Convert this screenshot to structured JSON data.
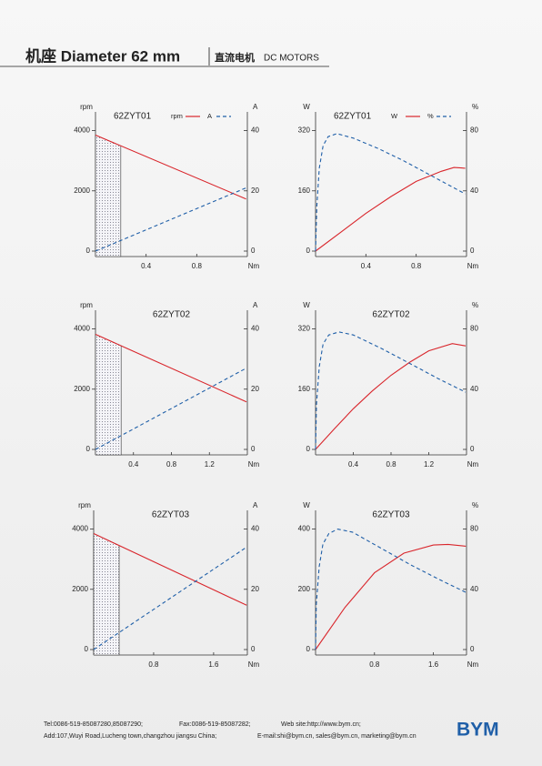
{
  "header": {
    "title": "机座 Diameter 62 mm",
    "subtitle_cn": "直流电机",
    "subtitle": "DC MOTORS"
  },
  "chart_data": [
    {
      "type": "line",
      "title": "62ZYT01",
      "y_label": "rpm",
      "y2_label": "A",
      "x_label": "Nm",
      "legend": true,
      "xlim": [
        0,
        1.2
      ],
      "xticks": [
        0.4,
        0.8
      ],
      "ylim": [
        0,
        4500
      ],
      "yticks": [
        0,
        2000,
        4000
      ],
      "y2lim": [
        0,
        45
      ],
      "y2ticks": [
        0,
        20,
        40
      ],
      "shaded_range": [
        0,
        0.2
      ],
      "series": [
        {
          "name": "rpm",
          "color": "#d9262c",
          "style": "solid",
          "x": [
            0,
            1.19
          ],
          "values": [
            3850,
            1730
          ]
        },
        {
          "name": "A",
          "color": "#1f5fa8",
          "style": "dashed",
          "axis": "y2",
          "x": [
            0,
            1.19
          ],
          "values": [
            0,
            21
          ]
        }
      ]
    },
    {
      "type": "line",
      "title": "62ZYT01",
      "y_label": "W",
      "y2_label": "%",
      "x_label": "Nm",
      "legend": true,
      "xlim": [
        0,
        1.2
      ],
      "xticks": [
        0.4,
        0.8
      ],
      "ylim": [
        0,
        360
      ],
      "yticks": [
        0,
        160,
        320
      ],
      "y2lim": [
        0,
        90
      ],
      "y2ticks": [
        0,
        40,
        80
      ],
      "series": [
        {
          "name": "W",
          "color": "#d9262c",
          "style": "solid",
          "x": [
            0,
            0.2,
            0.4,
            0.6,
            0.8,
            1.0,
            1.1,
            1.19
          ],
          "values": [
            0,
            50,
            100,
            145,
            185,
            212,
            222,
            220
          ]
        },
        {
          "name": "%",
          "color": "#1f5fa8",
          "style": "dashed",
          "axis": "y2",
          "x": [
            0,
            0.01,
            0.03,
            0.06,
            0.1,
            0.17,
            0.3,
            0.5,
            0.7,
            0.9,
            1.1,
            1.19
          ],
          "values": [
            0,
            30,
            55,
            70,
            76,
            78,
            75,
            68,
            60,
            51,
            42,
            38
          ]
        }
      ]
    },
    {
      "type": "line",
      "title": "62ZYT02",
      "y_label": "rpm",
      "y2_label": "A",
      "x_label": "Nm",
      "legend": false,
      "xlim": [
        0,
        1.6
      ],
      "xticks": [
        0.4,
        0.8,
        1.2
      ],
      "ylim": [
        0,
        4500
      ],
      "yticks": [
        0,
        2000,
        4000
      ],
      "y2lim": [
        0,
        45
      ],
      "y2ticks": [
        0,
        20,
        40
      ],
      "shaded_range": [
        0,
        0.27
      ],
      "series": [
        {
          "color": "#d9262c",
          "style": "solid",
          "x": [
            0,
            1.59
          ],
          "values": [
            3820,
            1580
          ]
        },
        {
          "color": "#1f5fa8",
          "style": "dashed",
          "axis": "y2",
          "x": [
            0,
            1.59
          ],
          "values": [
            0,
            27
          ]
        }
      ]
    },
    {
      "type": "line",
      "title": "62ZYT02",
      "y_label": "W",
      "y2_label": "%",
      "x_label": "Nm",
      "legend": false,
      "xlim": [
        0,
        1.6
      ],
      "xticks": [
        0.4,
        0.8,
        1.2
      ],
      "ylim": [
        0,
        360
      ],
      "yticks": [
        0,
        160,
        320
      ],
      "y2lim": [
        0,
        90
      ],
      "y2ticks": [
        0,
        40,
        80
      ],
      "series": [
        {
          "color": "#d9262c",
          "style": "solid",
          "x": [
            0,
            0.2,
            0.4,
            0.6,
            0.8,
            1.0,
            1.2,
            1.45,
            1.59
          ],
          "values": [
            0,
            55,
            108,
            155,
            197,
            232,
            262,
            281,
            275
          ]
        },
        {
          "color": "#1f5fa8",
          "style": "dashed",
          "axis": "y2",
          "x": [
            0,
            0.01,
            0.04,
            0.08,
            0.14,
            0.25,
            0.4,
            0.7,
            1.0,
            1.3,
            1.59
          ],
          "values": [
            0,
            30,
            55,
            70,
            76,
            78,
            76,
            67,
            57,
            47,
            38
          ]
        }
      ]
    },
    {
      "type": "line",
      "title": "62ZYT03",
      "y_label": "rpm",
      "y2_label": "A",
      "x_label": "Nm",
      "legend": false,
      "xlim": [
        0,
        2.05
      ],
      "xticks": [
        0.8,
        1.6
      ],
      "ylim": [
        0,
        4500
      ],
      "yticks": [
        0,
        2000,
        4000
      ],
      "y2lim": [
        0,
        45
      ],
      "y2ticks": [
        0,
        20,
        40
      ],
      "shaded_range": [
        0,
        0.34
      ],
      "series": [
        {
          "color": "#d9262c",
          "style": "solid",
          "x": [
            0,
            2.04
          ],
          "values": [
            3850,
            1470
          ]
        },
        {
          "color": "#1f5fa8",
          "style": "dashed",
          "axis": "y2",
          "x": [
            0,
            2.04
          ],
          "values": [
            0,
            34
          ]
        }
      ]
    },
    {
      "type": "line",
      "title": "62ZYT03",
      "y_label": "W",
      "y2_label": "%",
      "x_label": "Nm",
      "legend": false,
      "xlim": [
        0,
        2.05
      ],
      "xticks": [
        0.8,
        1.6
      ],
      "ylim": [
        0,
        450
      ],
      "yticks": [
        0,
        200,
        400
      ],
      "y2lim": [
        0,
        90
      ],
      "y2ticks": [
        0,
        40,
        80
      ],
      "series": [
        {
          "color": "#d9262c",
          "style": "solid",
          "x": [
            0,
            0.4,
            0.8,
            1.2,
            1.6,
            1.8,
            2.04
          ],
          "values": [
            0,
            140,
            255,
            320,
            347,
            349,
            343
          ]
        },
        {
          "color": "#1f5fa8",
          "style": "dashed",
          "axis": "y2",
          "x": [
            0,
            0.01,
            0.05,
            0.1,
            0.18,
            0.3,
            0.5,
            0.9,
            1.3,
            1.7,
            2.04
          ],
          "values": [
            0,
            30,
            55,
            70,
            77,
            80,
            78,
            67,
            56,
            46,
            38
          ]
        }
      ]
    }
  ],
  "footer": {
    "tel": "Tel:0086-519-85087280,85087290;",
    "fax": "Fax:0086-519-85087282;",
    "web": "Web site:http://www.bym.cn;",
    "address": "Add:107,Wuyi Road,Lucheng town,changzhou jiangsu China;",
    "email": "E-mail:shi@bym.cn, sales@bym.cn, marketing@bym.cn",
    "logo": "BYM"
  }
}
